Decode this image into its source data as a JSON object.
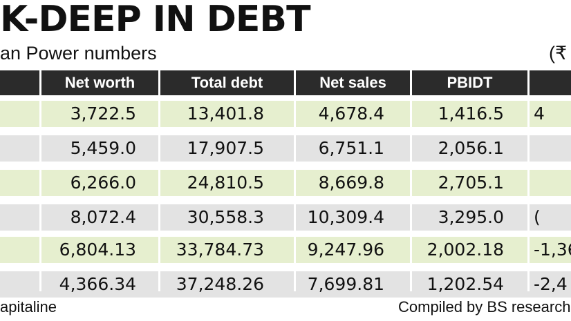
{
  "header": {
    "title": "K-DEEP IN DEBT",
    "subtitle": "an Power numbers",
    "unit": "(₹"
  },
  "footer": {
    "source": "apitaline",
    "credit": "Compiled by BS research"
  },
  "chart_data": {
    "type": "table",
    "columns": [
      "",
      "Net worth",
      "Total debt",
      "Net sales",
      "PBIDT",
      ""
    ],
    "rows": [
      [
        "3,722.5",
        "13,401.8",
        "4,678.4",
        "1,416.5",
        "4"
      ],
      [
        "5,459.0",
        "17,907.5",
        "6,751.1",
        "2,056.1",
        ""
      ],
      [
        "6,266.0",
        "24,810.5",
        "8,669.8",
        "2,705.1",
        ""
      ],
      [
        "8,072.4",
        "30,558.3",
        "10,309.4",
        "3,295.0",
        "("
      ],
      [
        "6,804.13",
        "33,784.73",
        "9,247.96",
        "2,002.18",
        "-1,36"
      ],
      [
        "4,366.34",
        "37,248.26",
        "7,699.81",
        "1,202.54",
        "-2,4"
      ]
    ],
    "row_shading": [
      "green",
      "grey",
      "green",
      "grey",
      "green",
      "grey"
    ]
  }
}
